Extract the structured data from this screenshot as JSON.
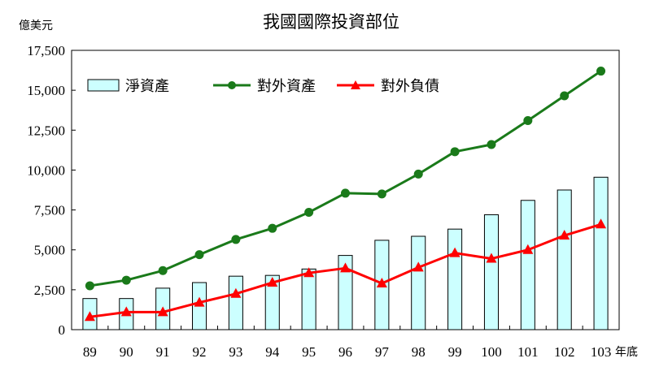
{
  "chart_data": {
    "type": "bar+line",
    "title": "我國國際投資部位",
    "ylabel": "億美元",
    "xlabel": "年底",
    "categories": [
      "89",
      "90",
      "91",
      "92",
      "93",
      "94",
      "95",
      "96",
      "97",
      "98",
      "99",
      "100",
      "101",
      "102",
      "103"
    ],
    "ylim": [
      0,
      17500
    ],
    "yticks": [
      0,
      2500,
      5000,
      7500,
      10000,
      12500,
      15000,
      17500
    ],
    "ytick_labels": [
      "0",
      "2,500",
      "5,000",
      "7,500",
      "10,000",
      "12,500",
      "15,000",
      "17,500"
    ],
    "grid": false,
    "legend_position": "top-left",
    "series": [
      {
        "name": "淨資產",
        "kind": "bar",
        "color": "#ccffff",
        "edge": "#000000",
        "values": [
          1950,
          1950,
          2600,
          2950,
          3350,
          3400,
          3800,
          4650,
          5600,
          5850,
          6300,
          7200,
          8100,
          8750,
          9550
        ]
      },
      {
        "name": "對外資產",
        "kind": "line",
        "marker": "circle",
        "color": "#1a7a1a",
        "values": [
          2750,
          3100,
          3700,
          4700,
          5650,
          6350,
          7350,
          8550,
          8500,
          9750,
          11150,
          11600,
          13100,
          14650,
          16200
        ]
      },
      {
        "name": "對外負債",
        "kind": "line",
        "marker": "triangle",
        "color": "#ff0000",
        "values": [
          800,
          1100,
          1100,
          1700,
          2250,
          2950,
          3550,
          3850,
          2900,
          3900,
          4800,
          4450,
          5000,
          5900,
          6600
        ]
      }
    ]
  }
}
